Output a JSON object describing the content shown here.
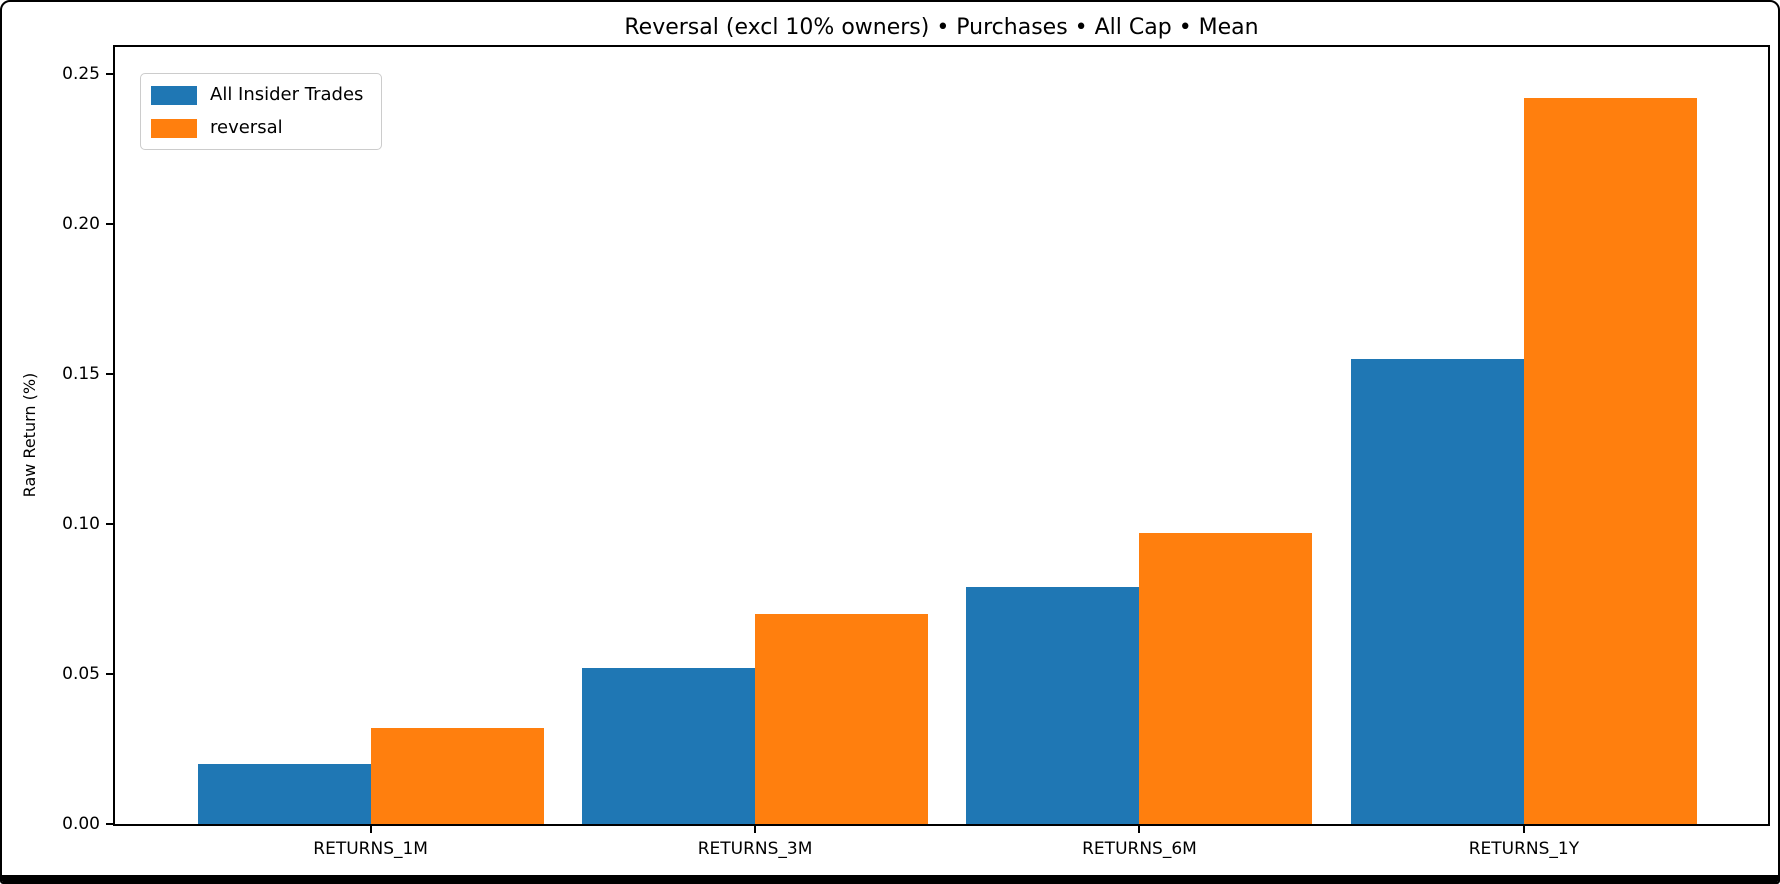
{
  "chart_data": {
    "type": "bar",
    "title": "Reversal (excl 10% owners) • Purchases • All Cap • Mean",
    "xlabel": "",
    "ylabel": "Raw Return (%)",
    "categories": [
      "RETURNS_1M",
      "RETURNS_3M",
      "RETURNS_6M",
      "RETURNS_1Y"
    ],
    "series": [
      {
        "name": "All Insider Trades",
        "color": "#1f77b4",
        "values": [
          0.02,
          0.052,
          0.079,
          0.155
        ]
      },
      {
        "name": "reversal",
        "color": "#ff7f0e",
        "values": [
          0.032,
          0.07,
          0.097,
          0.242
        ]
      }
    ],
    "ylim": [
      0,
      0.25
    ],
    "yticks": [
      "0.00",
      "0.05",
      "0.10",
      "0.15",
      "0.20",
      "0.25"
    ],
    "grid": false,
    "legend_position": "upper left",
    "background_color": "#ffffff",
    "spine_color": "#000000"
  }
}
